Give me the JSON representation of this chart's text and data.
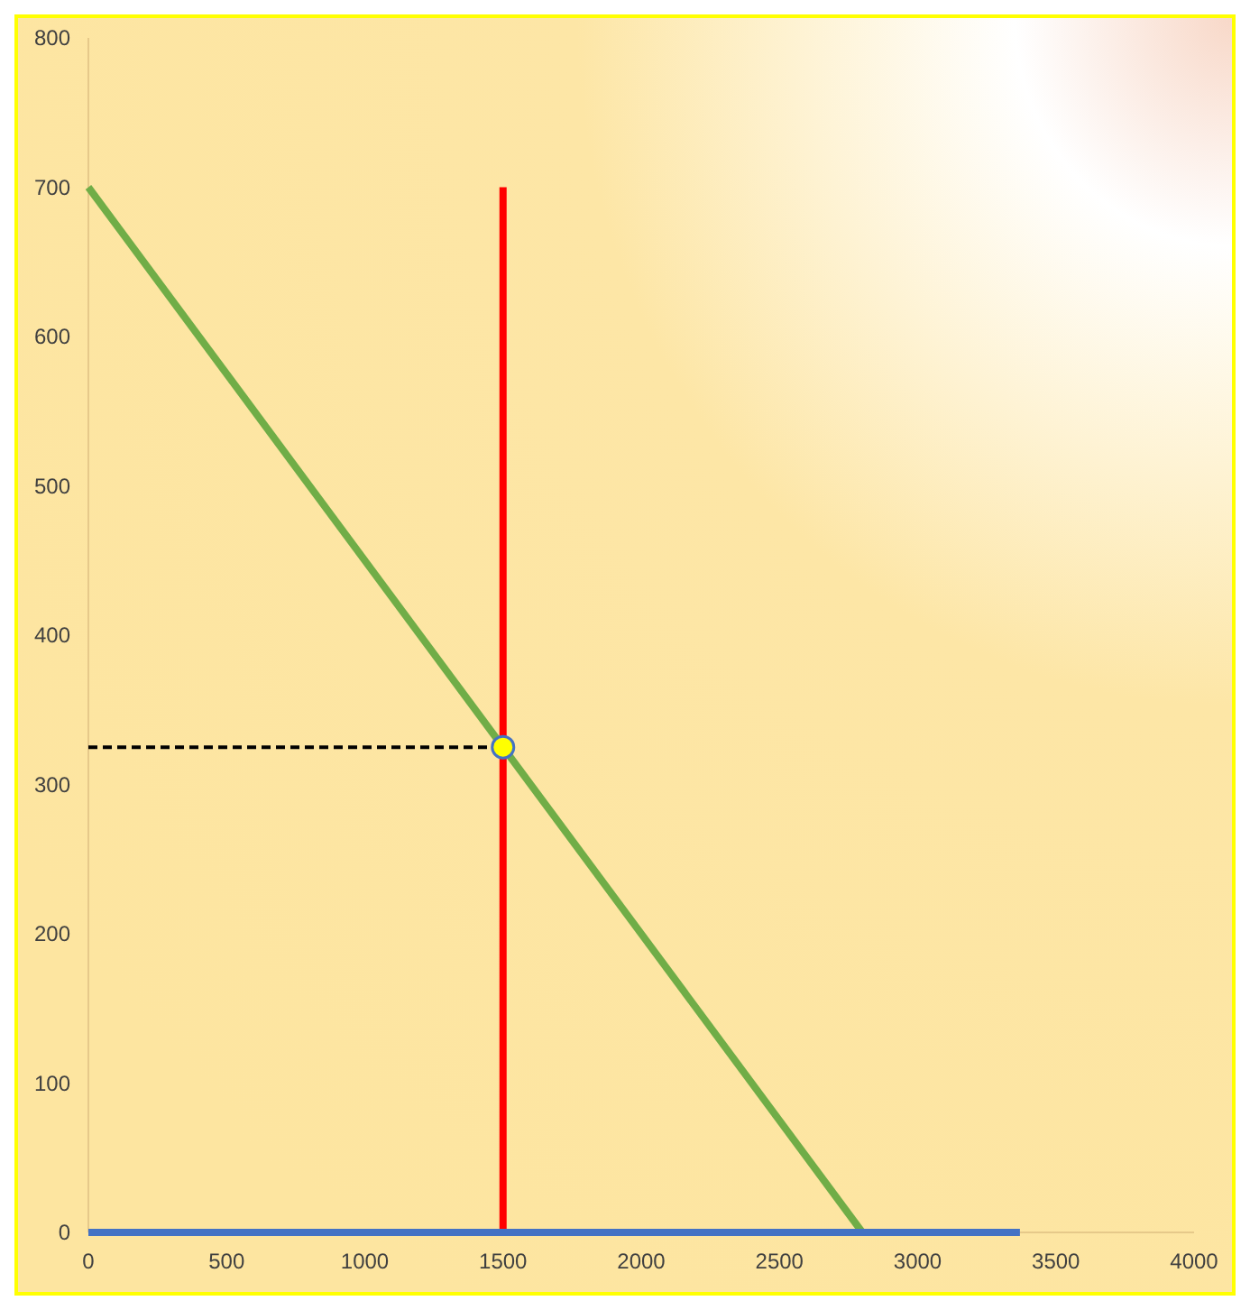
{
  "chart_data": {
    "type": "line",
    "xlim": [
      0,
      4000
    ],
    "xticks": [
      0,
      500,
      1000,
      1500,
      2000,
      2500,
      3000,
      3500,
      4000
    ],
    "ylim": [
      0,
      800
    ],
    "yticks": [
      0,
      100,
      200,
      300,
      400,
      500,
      600,
      700,
      800
    ],
    "grid": false,
    "series": [
      {
        "color": "#70ad47",
        "x": [
          0,
          2800
        ],
        "values": [
          700,
          0
        ]
      },
      {
        "color": "#ff0000",
        "x": [
          1500,
          1500
        ],
        "values": [
          0,
          700
        ]
      },
      {
        "color": "#4472c4",
        "x": [
          0,
          3370
        ],
        "values": [
          0,
          0
        ]
      },
      {
        "color": "#000000",
        "x": [
          0,
          1500
        ],
        "values": [
          325,
          325
        ],
        "line_style": "dashed"
      },
      {
        "type": "scatter",
        "color": "#ffff00",
        "x": [
          1500
        ],
        "values": [
          325
        ],
        "marker": "circle"
      }
    ]
  }
}
